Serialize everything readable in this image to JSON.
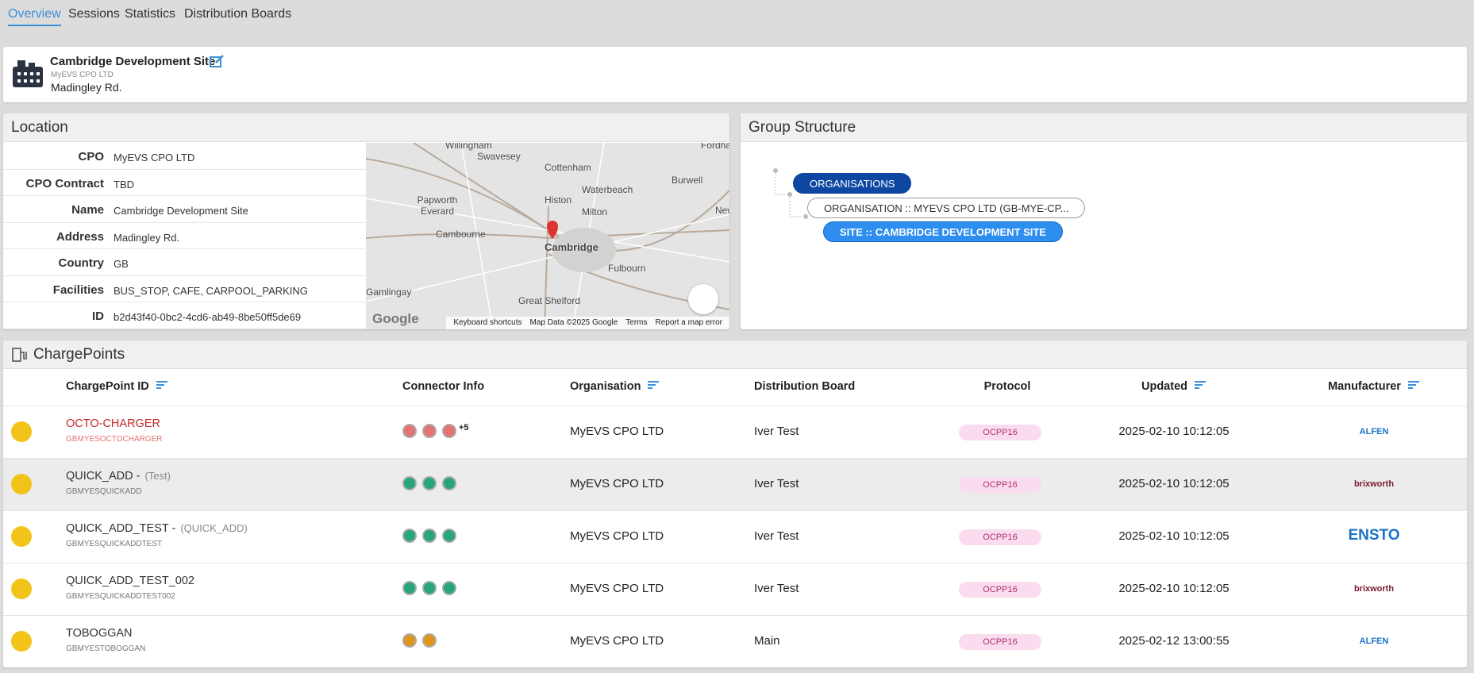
{
  "tabs": [
    "Overview",
    "Sessions",
    "Statistics",
    "Distribution Boards"
  ],
  "site": {
    "name": "Cambridge Development Site",
    "owner": "MyEVS CPO LTD",
    "address": "Madingley Rd."
  },
  "location": {
    "title": "Location",
    "rows": [
      [
        "CPO",
        "MyEVS CPO LTD"
      ],
      [
        "CPO Contract",
        "TBD"
      ],
      [
        "Name",
        "Cambridge Development Site"
      ],
      [
        "Address",
        "Madingley Rd."
      ],
      [
        "Country",
        "GB"
      ],
      [
        "Facilities",
        "BUS_STOP, CAFE, CARPOOL_PARKING"
      ],
      [
        "ID",
        "b2d43f40-0bc2-4cd6-ab49-8be50ff5de69"
      ]
    ],
    "map": {
      "places": [
        "Willingham",
        "Swavesey",
        "Cottenham",
        "Fordham",
        "Burwell",
        "Waterbeach",
        "Papworth Everard",
        "Histon",
        "Milton",
        "Cambourne",
        "Cambridge",
        "Fulbourn",
        "Gamlingay",
        "Great Shelford",
        "New"
      ],
      "logo": "Google",
      "footer": [
        "Keyboard shortcuts",
        "Map Data ©2025 Google",
        "Terms",
        "Report a map error"
      ]
    }
  },
  "group": {
    "title": "Group Structure",
    "nodes": [
      "ORGANISATIONS",
      "ORGANISATION :: MYEVS CPO LTD (GB-MYE-CP...",
      "SITE :: CAMBRIDGE DEVELOPMENT SITE"
    ]
  },
  "chargepoints": {
    "title": "ChargePoints",
    "columns": [
      {
        "label": "ChargePoint ID",
        "sortable": true
      },
      {
        "label": "Connector Info"
      },
      {
        "label": "Organisation",
        "sortable": true
      },
      {
        "label": "Distribution Board"
      },
      {
        "label": "Protocol"
      },
      {
        "label": "Updated",
        "sortable": true
      },
      {
        "label": "Manufacturer",
        "sortable": true
      }
    ],
    "rows": [
      {
        "name": "OCTO-CHARGER",
        "id": "GBMYESOCTOCHARGER",
        "error": true,
        "connectors": [
          "#e57373",
          "#e57373",
          "#e57373"
        ],
        "more": "+5",
        "org": "MyEVS CPO LTD",
        "board": "Iver Test",
        "protocol": "OCPP16",
        "updated": "2025-02-10 10:12:05",
        "manufacturer": "ALFEN"
      },
      {
        "name": "QUICK_ADD -",
        "alias": "(Test)",
        "id": "GBMYESQUICKADD",
        "connectors": [
          "#26a67a",
          "#26a67a",
          "#26a67a"
        ],
        "org": "MyEVS CPO LTD",
        "board": "Iver Test",
        "protocol": "OCPP16",
        "updated": "2025-02-10 10:12:05",
        "manufacturer": "brixworth"
      },
      {
        "name": "QUICK_ADD_TEST -",
        "alias": "(QUICK_ADD)",
        "id": "GBMYESQUICKADDTEST",
        "connectors": [
          "#26a67a",
          "#26a67a",
          "#26a67a"
        ],
        "org": "MyEVS CPO LTD",
        "board": "Iver Test",
        "protocol": "OCPP16",
        "updated": "2025-02-10 10:12:05",
        "manufacturer": "ENSTO"
      },
      {
        "name": "QUICK_ADD_TEST_002",
        "id": "GBMYESQUICKADDTEST002",
        "connectors": [
          "#26a67a",
          "#26a67a",
          "#26a67a"
        ],
        "org": "MyEVS CPO LTD",
        "board": "Iver Test",
        "protocol": "OCPP16",
        "updated": "2025-02-10 10:12:05",
        "manufacturer": "brixworth"
      },
      {
        "name": "TOBOGGAN",
        "id": "GBMYESTOBOGGAN",
        "connectors": [
          "#e0961c",
          "#e0961c"
        ],
        "org": "MyEVS CPO LTD",
        "board": "Main",
        "protocol": "OCPP16",
        "updated": "2025-02-12 13:00:55",
        "manufacturer": "ALFEN"
      }
    ]
  }
}
